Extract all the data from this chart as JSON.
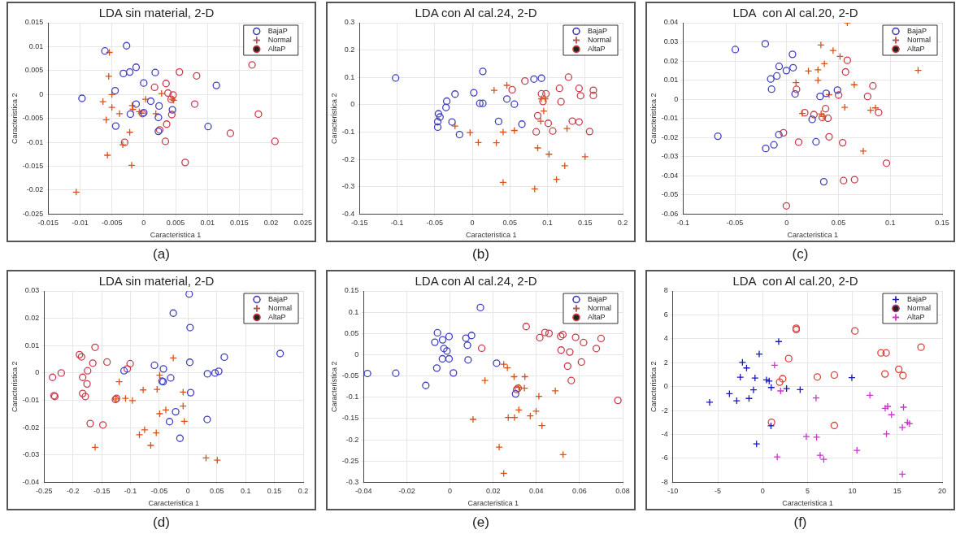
{
  "chart_data": [
    {
      "type": "scatter",
      "title": "LDA sin material, 2-D",
      "xlabel": "Caracteristica 1",
      "ylabel": "Caracteristica 2",
      "annotations": [
        "(a)"
      ],
      "grid": true,
      "legend": "top right",
      "xlim": [
        -0.015,
        0.025
      ],
      "xticks": [
        -0.015,
        -0.01,
        -0.005,
        0,
        0.005,
        0.01,
        0.015,
        0.02,
        0.025
      ],
      "ylim": [
        -0.025,
        0.015
      ],
      "yticks": [
        -0.025,
        -0.02,
        -0.015,
        -0.01,
        -0.005,
        0,
        0.005,
        0.01,
        0.015
      ],
      "series": [
        {
          "name": "BajaP",
          "color": "#4040c0",
          "marker": "circle",
          "x": [
            -0.0027,
            -0.0061,
            -0.0032,
            -0.0022,
            -0.0012,
            0.0018,
            0,
            -0.0045,
            -0.0097,
            0.0114,
            -0.0012,
            0.0011,
            0.0024,
            0,
            -0.0021,
            0.0023,
            0.0045,
            -0.0044,
            0.0023,
            0.0101
          ],
          "values": [
            0.0102,
            0.0091,
            0.0044,
            0.0047,
            0.0057,
            0.0046,
            0.0024,
            0.0008,
            -0.0008,
            0.0019,
            -0.002,
            -0.0014,
            -0.0024,
            -0.0038,
            -0.0041,
            -0.0048,
            -0.0032,
            -0.0066,
            -0.0077,
            -0.0067
          ]
        },
        {
          "name": "Normal",
          "color": "#d95319",
          "marker": "cross",
          "x": [
            -0.0054,
            -0.0055,
            -0.005,
            -0.0064,
            -0.005,
            -0.0059,
            -0.0038,
            -0.0018,
            -0.0017,
            -0.0007,
            -0.0004,
            0.0003,
            0.0028,
            0.0019,
            0.0045,
            0.0047,
            -0.0022,
            -0.0033,
            -0.0057,
            -0.0019,
            -0.0106
          ],
          "values": [
            0.0088,
            0.0038,
            0,
            -0.0015,
            -0.0027,
            -0.0053,
            -0.004,
            -0.0023,
            -0.0031,
            -0.0036,
            -0.0039,
            -0.001,
            0.0002,
            -0.004,
            -0.001,
            -0.0012,
            -0.0079,
            -0.0105,
            -0.0127,
            -0.0148,
            -0.0204
          ]
        },
        {
          "name": "AltaP",
          "color": "#c83c4c",
          "marker": "circle",
          "x": [
            0.017,
            0.0056,
            0.0083,
            0.0035,
            0.0017,
            0.0038,
            0.0046,
            0.0043,
            0.008,
            0.018,
            0.0044,
            -0.0002,
            0.0036,
            0.0025,
            0.0136,
            -0.003,
            0.0034,
            0.0206,
            0.0065
          ],
          "values": [
            0.0062,
            0.0047,
            0.0039,
            0.0023,
            0.0015,
            0.0003,
            -0.0001,
            -0.001,
            -0.002,
            -0.0041,
            -0.0042,
            -0.004,
            -0.0062,
            -0.0074,
            -0.0081,
            -0.01,
            -0.0098,
            -0.0098,
            -0.0142
          ]
        }
      ]
    },
    {
      "type": "scatter",
      "title": "LDA con Al cal.24, 2-D",
      "xlabel": "Caracteristica 1",
      "ylabel": "Caracteristica 2",
      "annotations": [
        "(b)"
      ],
      "grid": true,
      "legend": "top right",
      "xlim": [
        -0.15,
        0.2
      ],
      "xticks": [
        -0.15,
        -0.1,
        -0.05,
        0,
        0.05,
        0.1,
        0.15,
        0.2
      ],
      "ylim": [
        -0.4,
        0.3
      ],
      "yticks": [
        -0.4,
        -0.3,
        -0.2,
        -0.1,
        0,
        0.1,
        0.2,
        0.3
      ],
      "series": [
        {
          "name": "BajaP",
          "color": "#4040c0",
          "marker": "circle",
          "x": [
            -0.102,
            0.014,
            -0.023,
            0.002,
            -0.034,
            -0.035,
            -0.045,
            -0.043,
            -0.046,
            -0.046,
            -0.027,
            -0.017,
            0.01,
            0.014,
            0.046,
            0.056,
            0.035,
            0.066,
            0.082,
            0.092
          ],
          "values": [
            0.098,
            0.122,
            0.039,
            0.044,
            0.013,
            -0.01,
            -0.033,
            -0.045,
            -0.062,
            -0.082,
            -0.063,
            -0.109,
            0.005,
            0.005,
            0.021,
            0.002,
            -0.061,
            -0.071,
            0.094,
            0.097
          ]
        },
        {
          "name": "Normal",
          "color": "#d95319",
          "marker": "cross",
          "x": [
            0.029,
            0.046,
            -0.023,
            -0.003,
            0.008,
            0.032,
            0.041,
            0.056,
            0.041,
            0.083,
            0.087,
            0.091,
            0.095,
            0.092,
            0.097,
            0.102,
            0.112,
            0.123,
            0.126,
            0.15
          ],
          "values": [
            0.053,
            0.071,
            -0.078,
            -0.102,
            -0.138,
            -0.139,
            -0.1,
            -0.094,
            -0.284,
            -0.308,
            -0.158,
            -0.06,
            -0.023,
            0.022,
            0.022,
            -0.181,
            -0.273,
            -0.223,
            -0.087,
            -0.19
          ]
        },
        {
          "name": "AltaP",
          "color": "#c83c4c",
          "marker": "circle",
          "x": [
            0.053,
            0.07,
            0.116,
            0.128,
            0.142,
            0.144,
            0.161,
            0.161,
            0.092,
            0.098,
            0.094,
            0.118,
            0.087,
            0.101,
            0.085,
            0.107,
            0.133,
            0.142,
            0.156
          ],
          "values": [
            0.055,
            0.087,
            0.06,
            0.101,
            0.06,
            0.033,
            0.053,
            0.034,
            0.04,
            0.04,
            0.012,
            0.011,
            -0.04,
            -0.068,
            -0.099,
            -0.096,
            -0.06,
            -0.063,
            -0.098
          ]
        }
      ]
    },
    {
      "type": "scatter",
      "title": "LDA  con Al cal.20, 2-D",
      "xlabel": "Caracteristica 1",
      "ylabel": "Caracteristica 2",
      "annotations": [
        "(c)"
      ],
      "grid": true,
      "legend": "top right",
      "xlim": [
        -0.1,
        0.15
      ],
      "xticks": [
        -0.1,
        -0.05,
        0,
        0.05,
        0.1,
        0.15
      ],
      "ylim": [
        -0.06,
        0.04
      ],
      "yticks": [
        -0.06,
        -0.05,
        -0.04,
        -0.03,
        -0.02,
        -0.01,
        0,
        0.01,
        0.02,
        0.03,
        0.04
      ],
      "series": [
        {
          "name": "BajaP",
          "color": "#4040c0",
          "marker": "circle",
          "x": [
            -0.0496,
            -0.0207,
            0.0056,
            -0.0073,
            -0.0003,
            0.0062,
            -0.0154,
            -0.0095,
            -0.0146,
            0.0081,
            0.0322,
            0.0381,
            0.049,
            0.0246,
            0.0283,
            -0.0664,
            -0.0076,
            -0.0123,
            -0.0202,
            0.0358
          ],
          "values": [
            0.026,
            0.029,
            0.0235,
            0.0172,
            0.015,
            0.0165,
            0.0106,
            0.0122,
            0.0053,
            0.0028,
            0.0015,
            0.0031,
            0.0048,
            -0.0105,
            -0.0222,
            -0.0193,
            -0.0185,
            -0.0238,
            -0.0257,
            -0.0431
          ]
        },
        {
          "name": "Normal",
          "color": "#d95319",
          "marker": "cross",
          "x": [
            0.0585,
            0.033,
            0.0448,
            0.0515,
            0.0364,
            0.021,
            0.0302,
            0.0302,
            0.009,
            0.0409,
            0.0652,
            0.1268,
            0.056,
            0.0809,
            0.0857,
            0.0151,
            0.0333,
            0.0353,
            0.0739
          ],
          "values": [
            0.04,
            0.0284,
            0.0255,
            0.0224,
            0.0186,
            0.0148,
            0.0154,
            0.0099,
            0.0087,
            0.0024,
            0.0076,
            0.0151,
            -0.0042,
            -0.0057,
            -0.0045,
            -0.0074,
            -0.0076,
            -0.009,
            -0.0271
          ]
        },
        {
          "name": "AltaP",
          "color": "#c83c4c",
          "marker": "circle",
          "x": [
            0.0585,
            0.0568,
            0.0095,
            0.0501,
            0.0781,
            0.0832,
            0.0887,
            0.0375,
            0.0174,
            0.0263,
            0.0344,
            0.0398,
            -0.0031,
            0.0115,
            0.0409,
            0.054,
            0.0963,
            0.0549,
            0.0655,
            -0.0003
          ],
          "values": [
            0.0204,
            0.0143,
            0.0052,
            0.0022,
            0.0015,
            0.007,
            -0.0069,
            -0.0049,
            -0.007,
            -0.008,
            -0.0095,
            -0.0099,
            -0.0175,
            -0.0224,
            -0.0196,
            -0.0227,
            -0.0334,
            -0.0425,
            -0.042,
            -0.0557
          ]
        }
      ]
    },
    {
      "type": "scatter",
      "title": "LDA sin material, 2-D",
      "xlabel": "Caracteristica 1",
      "ylabel": "Caracteristica 2",
      "annotations": [
        "(d)"
      ],
      "grid": true,
      "legend": "top right",
      "xlim": [
        -0.25,
        0.2
      ],
      "xticks": [
        -0.25,
        -0.2,
        -0.15,
        -0.1,
        -0.05,
        0,
        0.05,
        0.1,
        0.15,
        0.2
      ],
      "ylim": [
        -0.04,
        0.03
      ],
      "yticks": [
        -0.04,
        -0.03,
        -0.02,
        -0.01,
        0,
        0.01,
        0.02,
        0.03
      ],
      "series": [
        {
          "name": "BajaP",
          "color": "#4040c0",
          "marker": "circle",
          "x": [
            0.002,
            -0.0257,
            0.0035,
            0.003,
            -0.0584,
            -0.0428,
            -0.1112,
            -0.0302,
            -0.0453,
            -0.0433,
            0.0045,
            0.0337,
            0.0468,
            0.0533,
            0.0629,
            0.16,
            -0.0216,
            -0.0322,
            -0.0141,
            0.0332
          ],
          "values": [
            0.0289,
            0.0219,
            0.0166,
            0.0039,
            0.0028,
            0.0015,
            0.0008,
            -0.0018,
            -0.003,
            -0.0032,
            -0.0072,
            -0.0003,
            0,
            0.0006,
            0.0058,
            0.0071,
            -0.0142,
            -0.0178,
            -0.0239,
            -0.017
          ]
        },
        {
          "name": "Normal",
          "color": "#d95319",
          "marker": "cross",
          "x": [
            -0.0257,
            -0.0493,
            -0.1197,
            -0.078,
            -0.0538,
            -0.0086,
            -0.1087,
            -0.0966,
            -0.1253,
            -0.0086,
            -0.0493,
            -0.0387,
            -0.0065,
            -0.0755,
            -0.0845,
            -0.0553,
            -0.0649,
            -0.1615,
            0.0312,
            0.0508
          ],
          "values": [
            0.0055,
            -0.0008,
            -0.0032,
            -0.0062,
            -0.006,
            -0.007,
            -0.0093,
            -0.0101,
            -0.0095,
            -0.0121,
            -0.0149,
            -0.0135,
            -0.0177,
            -0.0208,
            -0.0226,
            -0.0219,
            -0.0265,
            -0.0272,
            -0.0311,
            -0.0319
          ]
        },
        {
          "name": "AltaP",
          "color": "#c83c4c",
          "marker": "circle",
          "x": [
            -0.1886,
            -0.1851,
            -0.1615,
            -0.1655,
            -0.1408,
            -0.1006,
            -0.1056,
            -0.1745,
            -0.2203,
            -0.2354,
            -0.1831,
            -0.1755,
            -0.1831,
            -0.1785,
            -0.2329,
            -0.2314,
            -0.1242,
            -0.1262,
            -0.17,
            -0.1479
          ],
          "values": [
            0.0067,
            0.0059,
            0.0094,
            0.0036,
            0.004,
            0.0034,
            0.0015,
            0.0008,
            0,
            -0.0016,
            -0.0016,
            -0.004,
            -0.0075,
            -0.0086,
            -0.0083,
            -0.0086,
            -0.0093,
            -0.0097,
            -0.0185,
            -0.019
          ]
        }
      ]
    },
    {
      "type": "scatter",
      "title": "LDA con Al cal.24, 2-D",
      "xlabel": "Caracteristica 1",
      "ylabel": "Caracteristica 2",
      "annotations": [
        "(e)"
      ],
      "grid": true,
      "legend": "top right",
      "xlim": [
        -0.04,
        0.08
      ],
      "xticks": [
        -0.04,
        -0.02,
        0,
        0.02,
        0.04,
        0.06,
        0.08
      ],
      "ylim": [
        -0.3,
        0.15
      ],
      "yticks": [
        -0.3,
        -0.25,
        -0.2,
        -0.15,
        -0.1,
        -0.05,
        0,
        0.05,
        0.1,
        0.15
      ],
      "series": [
        {
          "name": "BajaP",
          "color": "#4040c0",
          "marker": "circle",
          "x": [
            0.0141,
            -0.0058,
            -0.007,
            -0.0034,
            -0.0004,
            -0.0028,
            -0.0014,
            -0.0035,
            -0.0004,
            -0.0061,
            0.0016,
            -0.0382,
            -0.0251,
            -0.0112,
            0.0074,
            0.01,
            0.0081,
            0.0084,
            0.0216,
            0.0304
          ],
          "values": [
            0.111,
            0.0517,
            0.0294,
            0.0351,
            0.0428,
            0.0147,
            0.0089,
            -0.0096,
            -0.0096,
            -0.0313,
            -0.0428,
            -0.0441,
            -0.0434,
            -0.0722,
            0.039,
            0.0453,
            0.0224,
            -0.0121,
            -0.0198,
            -0.092
          ]
        },
        {
          "name": "Normal",
          "color": "#d95319",
          "marker": "cross",
          "x": [
            0.0249,
            0.0266,
            0.0162,
            0.0297,
            0.0347,
            0.0319,
            0.0345,
            0.0412,
            0.0488,
            0.0319,
            0.0372,
            0.0399,
            0.027,
            0.0299,
            0.0426,
            0.0107,
            0.0228,
            0.0524,
            0.0249
          ],
          "values": [
            -0.0224,
            -0.0307,
            -0.0607,
            -0.0517,
            -0.0517,
            -0.0766,
            -0.0785,
            -0.0977,
            -0.085,
            -0.1297,
            -0.1437,
            -0.1328,
            -0.1475,
            -0.1475,
            -0.1667,
            -0.152,
            -0.2171,
            -0.2349,
            -0.279
          ]
        },
        {
          "name": "AltaP",
          "color": "#c83c4c",
          "marker": "circle",
          "x": [
            0.0353,
            0.044,
            0.0459,
            0.0416,
            0.0513,
            0.0523,
            0.0582,
            0.0619,
            0.07,
            0.0678,
            0.0515,
            0.0555,
            0.0609,
            0.0545,
            0.0562,
            0.0778,
            0.0147,
            0.0309,
            0.0316
          ],
          "values": [
            0.0664,
            0.0524,
            0.0504,
            0.0402,
            0.0434,
            0.0473,
            0.0409,
            0.0287,
            0.0383,
            0.0147,
            0.0109,
            0.0064,
            -0.0172,
            -0.0268,
            -0.0607,
            -0.1073,
            0.0153,
            -0.0817,
            -0.0785
          ]
        }
      ]
    },
    {
      "type": "scatter",
      "title": "LDA  con Al cal.20, 2-D",
      "xlabel": "Caracteristica 1",
      "ylabel": "Caracteristica 2",
      "annotations": [
        "(f)"
      ],
      "grid": true,
      "legend": "top right",
      "xlim": [
        -10,
        20
      ],
      "xticks": [
        -10,
        -5,
        0,
        5,
        10,
        15,
        20
      ],
      "ylim": [
        -8,
        8
      ],
      "yticks": [
        -8,
        -6,
        -4,
        -2,
        0,
        2,
        4,
        6,
        8
      ],
      "series": [
        {
          "name": "BajaP",
          "color": "#1a1ab4",
          "marker": "cross",
          "x": [
            1.79,
            -0.38,
            -2.25,
            -1.79,
            -2.49,
            -0.85,
            0.43,
            0.73,
            0.96,
            2.67,
            4.18,
            -1.02,
            -3.7,
            -2.89,
            -1.52,
            -5.91,
            0.93,
            -0.68,
            9.94
          ],
          "values": [
            3.77,
            2.73,
            2.03,
            1.56,
            0.79,
            0.72,
            0.56,
            0.47,
            -0.07,
            -0.16,
            -0.25,
            -0.27,
            -0.59,
            -1.18,
            -0.99,
            -1.31,
            -3.28,
            -4.79,
            0.75
          ]
        },
        {
          "name": "Normal",
          "color": "#d9413b",
          "marker": "circle",
          "x": [
            3.74,
            3.74,
            10.28,
            2.9,
            2.23,
            1.9,
            6.09,
            7.99,
            13.19,
            13.76,
            13.63,
            15.17,
            15.64,
            17.65,
            0.99,
            7.99
          ],
          "values": [
            4.88,
            4.77,
            4.66,
            2.35,
            0.66,
            0.38,
            0.81,
            0.97,
            2.82,
            2.82,
            1.06,
            1.45,
            0.93,
            3.3,
            -2.98,
            -3.25
          ]
        },
        {
          "name": "AltaP",
          "color": "#cc33cc",
          "marker": "cross",
          "x": [
            1.33,
            2,
            5.95,
            11.95,
            13.66,
            13.93,
            15.7,
            14.36,
            16.13,
            16.37,
            15.57,
            13.8,
            4.87,
            6.01,
            6.41,
            6.81,
            1.63,
            10.51,
            15.57
          ],
          "values": [
            1.79,
            -0.36,
            -0.95,
            -0.72,
            -1.81,
            -1.65,
            -1.72,
            -2.35,
            -2.98,
            -3.1,
            -3.41,
            -3.95,
            -4.18,
            -4.23,
            -5.74,
            -6.08,
            -5.88,
            -5.33,
            -7.32
          ]
        }
      ]
    }
  ]
}
